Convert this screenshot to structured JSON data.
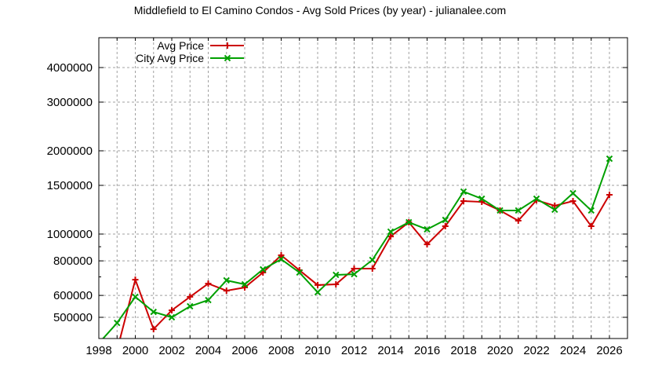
{
  "chart_data": {
    "type": "line",
    "title": "Middlefield to El Camino Condos - Avg Sold Prices (by year) - julianalee.com",
    "xlabel": "",
    "ylabel": "",
    "y_scale": "log",
    "xlim": [
      1998,
      2026.8
    ],
    "ylim": [
      420000,
      5000000
    ],
    "grid": true,
    "legend_position": "top-left",
    "x_ticks": [
      1998,
      2000,
      2002,
      2004,
      2006,
      2008,
      2010,
      2012,
      2014,
      2016,
      2018,
      2020,
      2022,
      2024,
      2026
    ],
    "y_ticks": [
      500000,
      600000,
      800000,
      1000000,
      1500000,
      2000000,
      3000000,
      4000000
    ],
    "y_tick_labels": [
      "500000",
      "600000",
      "800000",
      "1000000",
      "1500000",
      "2000000",
      "3000000",
      "4000000"
    ],
    "x": [
      1998,
      1999,
      2000,
      2001,
      2002,
      2003,
      2004,
      2005,
      2006,
      2007,
      2008,
      2009,
      2010,
      2011,
      2012,
      2013,
      2014,
      2015,
      2016,
      2017,
      2018,
      2019,
      2020,
      2021,
      2022,
      2023,
      2024,
      2025,
      2026
    ],
    "series": [
      {
        "name": "Avg Price",
        "color": "#cc0000",
        "marker": "plus",
        "values": [
          null,
          380000,
          684000,
          453000,
          530000,
          593000,
          662000,
          624000,
          641000,
          726000,
          838000,
          740000,
          654000,
          658000,
          750000,
          750000,
          980000,
          1103000,
          918000,
          1068000,
          1316000,
          1307000,
          1217000,
          1118000,
          1325000,
          1266000,
          1316000,
          1068000,
          1387000
        ]
      },
      {
        "name": "City Avg Price",
        "color": "#00a000",
        "marker": "cross",
        "values": [
          403000,
          477000,
          593000,
          523000,
          500000,
          548000,
          577000,
          680000,
          658000,
          745000,
          811000,
          726000,
          616000,
          712000,
          716000,
          806000,
          1020000,
          1103000,
          1040000,
          1125000,
          1424000,
          1342000,
          1217000,
          1217000,
          1342000,
          1225000,
          1405000,
          1217000,
          1873000
        ]
      }
    ]
  }
}
